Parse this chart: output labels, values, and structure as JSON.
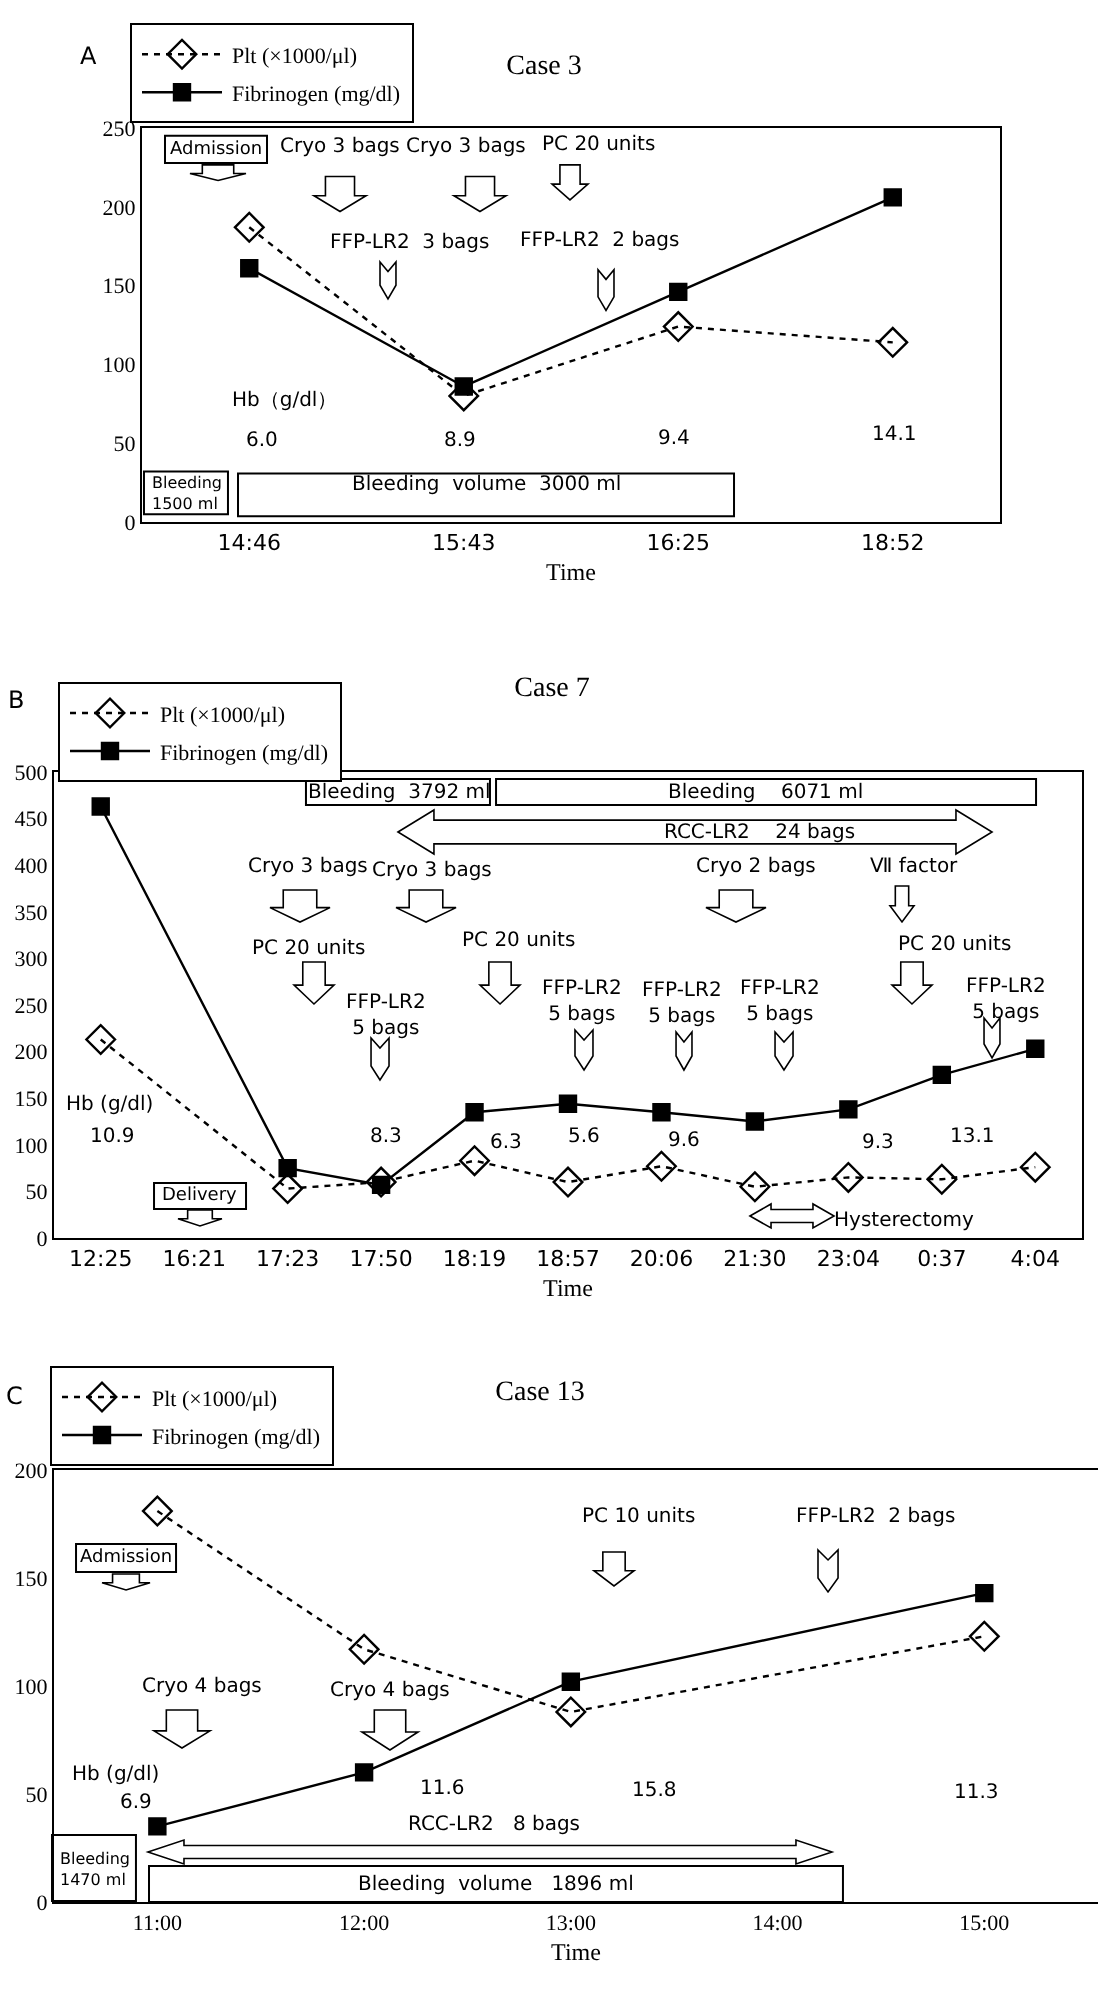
{
  "chart_data": [
    {
      "type": "line",
      "title": "Case 3",
      "xlabel": "Time",
      "categories": [
        "14:46",
        "15:43",
        "16:25",
        "18:52"
      ],
      "series": [
        {
          "name": "Plt (×1000/μl)",
          "color": "#000000",
          "marker": "diamond",
          "line_style": "dotted",
          "values": [
            187,
            80,
            124,
            114
          ]
        },
        {
          "name": "Fibrinogen (mg/dl)",
          "color": "#000000",
          "marker": "square",
          "line_style": "solid",
          "values": [
            161,
            86,
            146,
            206
          ]
        }
      ],
      "ylim": [
        0,
        250
      ],
      "yticks": [
        0,
        50,
        100,
        150,
        200,
        250
      ],
      "grid": false,
      "legend": "top left",
      "annotations": [
        "A",
        "Admission",
        "Cryo 3 bags",
        "Cryo 3 bags",
        "PC 20 units",
        "FFP-LR2  3 bags",
        "FFP-LR2  2 bags",
        "Hb（g/dl）",
        "6.0",
        "8.9",
        "9.4",
        "14.1",
        "Bleeding\n1500 ml",
        "Bleeding  volume  3000 ml"
      ]
    },
    {
      "type": "line",
      "title": "Case 7",
      "xlabel": "Time",
      "categories": [
        "12:25",
        "16:21",
        "17:23",
        "17:50",
        "18:19",
        "18:57",
        "20:06",
        "21:30",
        "23:04",
        "0:37",
        "4:04"
      ],
      "series": [
        {
          "name": "Plt (×1000/μl)",
          "color": "#000000",
          "marker": "diamond",
          "line_style": "dotted",
          "values": [
            213,
            null,
            53,
            60,
            83,
            60,
            77,
            55,
            65,
            63,
            76
          ]
        },
        {
          "name": "Fibrinogen (mg/dl)",
          "color": "#000000",
          "marker": "square",
          "line_style": "solid",
          "values": [
            463,
            null,
            75,
            57,
            135,
            144,
            135,
            125,
            138,
            175,
            203
          ]
        }
      ],
      "ylim": [
        0,
        500
      ],
      "yticks": [
        0,
        50,
        100,
        150,
        200,
        250,
        300,
        350,
        400,
        450,
        500
      ],
      "grid": false,
      "legend": "top left",
      "annotations": [
        "B",
        "Bleeding  3792 ml",
        "Bleeding    6071 ml",
        "RCC-LR2    24 bags",
        "Cryo 3 bags",
        "Cryo 3 bags",
        "Cryo 2 bags",
        "Ⅶ factor",
        "PC 20 units",
        "PC 20 units",
        "PC 20 units",
        "FFP-LR2\n5 bags",
        "FFP-LR2\n5 bags",
        "FFP-LR2\n5 bags",
        "FFP-LR2\n5 bags",
        "FFP-LR2\n5 bags",
        "Hb (g/dl)",
        "10.9",
        "8.3",
        "6.3",
        "5.6",
        "9.6",
        "9.3",
        "13.1",
        "Delivery",
        "Hysterectomy"
      ]
    },
    {
      "type": "line",
      "title": "Case 13",
      "xlabel": "Time",
      "x": [
        11,
        12,
        13,
        15
      ],
      "series": [
        {
          "name": "Plt (×1000/μl)",
          "color": "#000000",
          "marker": "diamond",
          "line_style": "dotted",
          "values": [
            181,
            117,
            88,
            123
          ]
        },
        {
          "name": "Fibrinogen (mg/dl)",
          "color": "#000000",
          "marker": "square",
          "line_style": "solid",
          "values": [
            35,
            60,
            102,
            143
          ]
        }
      ],
      "xlim": [
        10.5,
        15.55
      ],
      "xticks": [
        {
          "value": 11,
          "label": "11:00"
        },
        {
          "value": 12,
          "label": "12:00"
        },
        {
          "value": 13,
          "label": "13:00"
        },
        {
          "value": 14,
          "label": "14:00"
        },
        {
          "value": 15,
          "label": "15:00"
        }
      ],
      "ylim": [
        0,
        200
      ],
      "yticks": [
        0,
        50,
        100,
        150,
        200
      ],
      "grid": false,
      "legend": "top left",
      "annotations": [
        "C",
        "Admission",
        "PC 10 units",
        "FFP-LR2  2 bags",
        "Cryo 4 bags",
        "Cryo 4 bags",
        "Hb (g/dl)",
        "6.9",
        "11.6",
        "15.8",
        "11.3",
        "RCC-LR2   8 bags",
        "Bleeding\n1470 ml",
        "Bleeding  volume   1896 ml"
      ]
    }
  ]
}
